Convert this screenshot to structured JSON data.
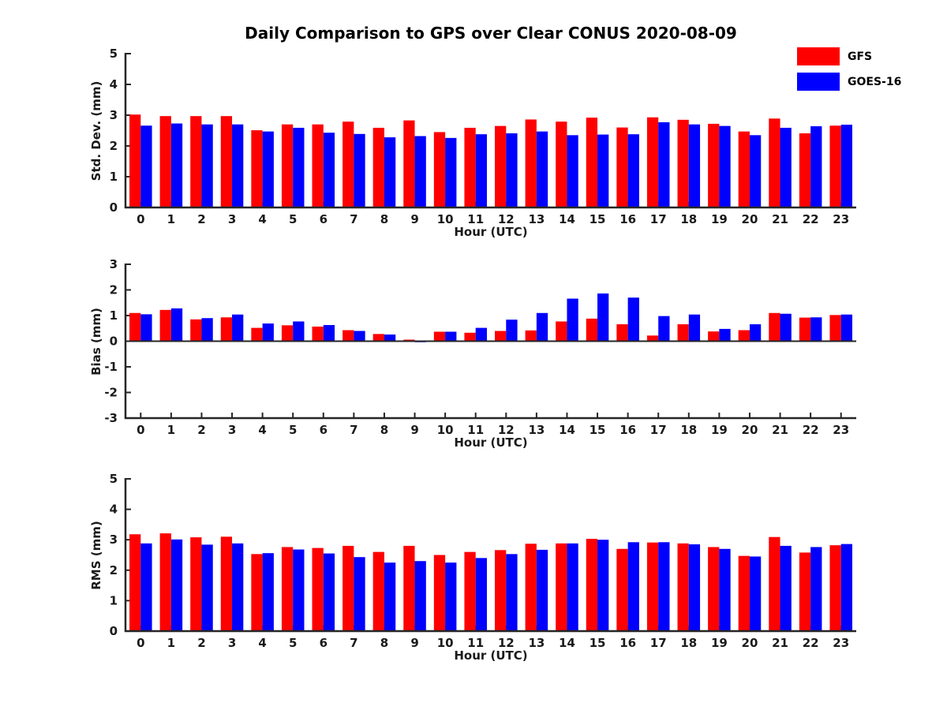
{
  "title": "Daily Comparison to GPS over Clear CONUS 2020-08-09",
  "legend": {
    "items": [
      {
        "label": "GFS",
        "color": "#ff0000"
      },
      {
        "label": "GOES-16",
        "color": "#0000ff"
      }
    ]
  },
  "colors": {
    "gfs": "#ff0000",
    "goes16": "#0000ff",
    "axis": "#262626",
    "text": "#1a1a1a",
    "background": "#ffffff"
  },
  "chart_data": [
    {
      "type": "bar",
      "title": "Daily Comparison to GPS over Clear CONUS 2020-08-09",
      "ylabel": "Std. Dev. (mm)",
      "xlabel": "Hour (UTC)",
      "categories": [
        "0",
        "1",
        "2",
        "3",
        "4",
        "5",
        "6",
        "7",
        "8",
        "9",
        "10",
        "11",
        "12",
        "13",
        "14",
        "15",
        "16",
        "17",
        "18",
        "19",
        "20",
        "21",
        "22",
        "23"
      ],
      "ylim": [
        0,
        5
      ],
      "yticks": [
        0,
        1,
        2,
        3,
        4,
        5
      ],
      "grid": false,
      "legend_position": "outside-upper-right",
      "series": [
        {
          "name": "GFS",
          "color": "#ff0000",
          "values": [
            3.02,
            2.97,
            2.97,
            2.97,
            2.51,
            2.7,
            2.7,
            2.79,
            2.59,
            2.83,
            2.45,
            2.59,
            2.65,
            2.86,
            2.79,
            2.92,
            2.6,
            2.93,
            2.85,
            2.72,
            2.47,
            2.89,
            2.41,
            2.66
          ]
        },
        {
          "name": "GOES-16",
          "color": "#0000ff",
          "values": [
            2.66,
            2.73,
            2.7,
            2.7,
            2.47,
            2.59,
            2.43,
            2.39,
            2.28,
            2.32,
            2.26,
            2.38,
            2.41,
            2.47,
            2.35,
            2.37,
            2.38,
            2.77,
            2.7,
            2.65,
            2.35,
            2.59,
            2.64,
            2.69
          ]
        }
      ]
    },
    {
      "type": "bar",
      "title": "",
      "ylabel": "Bias (mm)",
      "xlabel": "Hour (UTC)",
      "categories": [
        "0",
        "1",
        "2",
        "3",
        "4",
        "5",
        "6",
        "7",
        "8",
        "9",
        "10",
        "11",
        "12",
        "13",
        "14",
        "15",
        "16",
        "17",
        "18",
        "19",
        "20",
        "21",
        "22",
        "23"
      ],
      "ylim": [
        -3,
        3
      ],
      "yticks": [
        -3,
        -2,
        -1,
        0,
        1,
        2,
        3
      ],
      "grid": false,
      "series": [
        {
          "name": "GFS",
          "color": "#ff0000",
          "values": [
            1.1,
            1.22,
            0.85,
            0.93,
            0.52,
            0.62,
            0.57,
            0.43,
            0.28,
            0.06,
            0.37,
            0.33,
            0.4,
            0.42,
            0.77,
            0.88,
            0.66,
            0.22,
            0.66,
            0.38,
            0.43,
            1.1,
            0.92,
            1.02
          ]
        },
        {
          "name": "GOES-16",
          "color": "#0000ff",
          "values": [
            1.05,
            1.28,
            0.9,
            1.04,
            0.69,
            0.77,
            0.63,
            0.4,
            0.26,
            -0.04,
            0.37,
            0.52,
            0.84,
            1.1,
            1.66,
            1.86,
            1.7,
            0.98,
            1.04,
            0.48,
            0.66,
            1.07,
            0.93,
            1.04
          ]
        }
      ]
    },
    {
      "type": "bar",
      "title": "",
      "ylabel": "RMS (mm)",
      "xlabel": "Hour (UTC)",
      "categories": [
        "0",
        "1",
        "2",
        "3",
        "4",
        "5",
        "6",
        "7",
        "8",
        "9",
        "10",
        "11",
        "12",
        "13",
        "14",
        "15",
        "16",
        "17",
        "18",
        "19",
        "20",
        "21",
        "22",
        "23"
      ],
      "ylim": [
        0,
        5
      ],
      "yticks": [
        0,
        1,
        2,
        3,
        4,
        5
      ],
      "grid": false,
      "series": [
        {
          "name": "GFS",
          "color": "#ff0000",
          "values": [
            3.18,
            3.21,
            3.08,
            3.1,
            2.53,
            2.76,
            2.73,
            2.8,
            2.6,
            2.8,
            2.5,
            2.6,
            2.66,
            2.87,
            2.88,
            3.03,
            2.7,
            2.91,
            2.88,
            2.76,
            2.47,
            3.09,
            2.58,
            2.82
          ]
        },
        {
          "name": "GOES-16",
          "color": "#0000ff",
          "values": [
            2.88,
            3.01,
            2.84,
            2.88,
            2.56,
            2.68,
            2.55,
            2.43,
            2.25,
            2.3,
            2.25,
            2.4,
            2.53,
            2.67,
            2.88,
            3.0,
            2.92,
            2.92,
            2.85,
            2.7,
            2.45,
            2.8,
            2.76,
            2.86
          ]
        }
      ]
    }
  ]
}
